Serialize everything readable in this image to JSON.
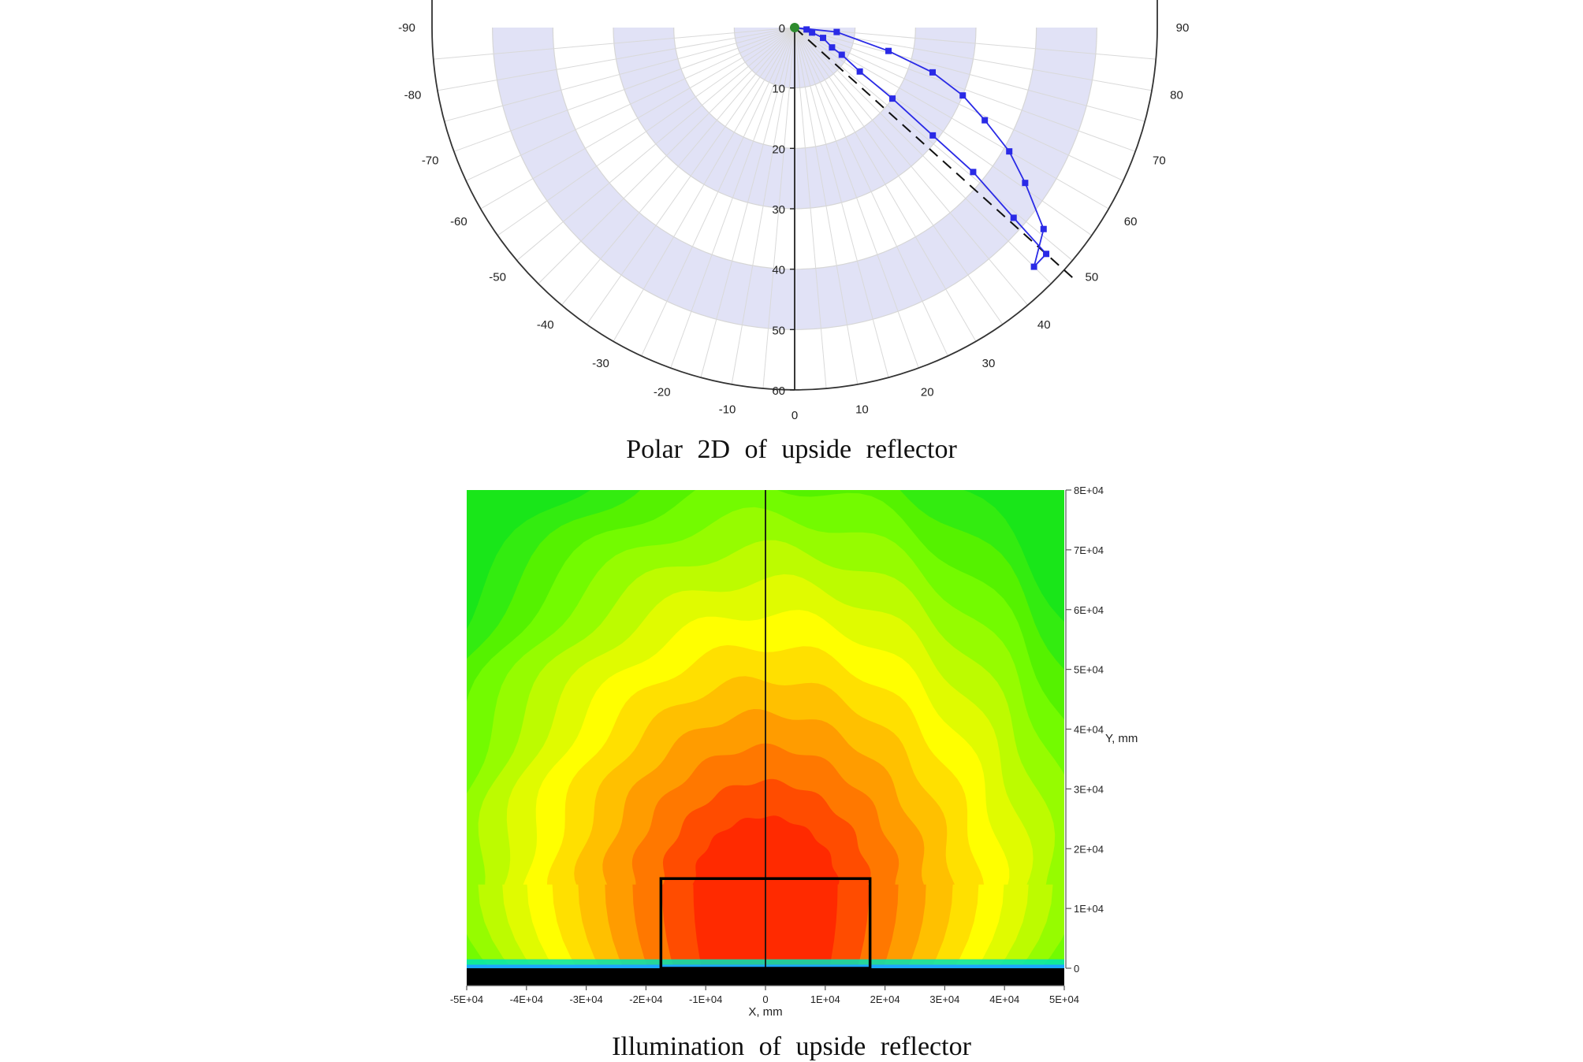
{
  "chart_data": [
    {
      "type": "polar-line",
      "caption": "Polar 2D of upside reflector",
      "radial_range": [
        0,
        60
      ],
      "radial_ticks": [
        "0",
        "10",
        "20",
        "30",
        "40",
        "50",
        "60"
      ],
      "angle_labels_left": [
        "-90",
        "-80",
        "-70",
        "-60",
        "-50",
        "-40",
        "-30",
        "-20",
        "-10",
        "0"
      ],
      "angle_labels_right": [
        "10",
        "20",
        "30",
        "40",
        "50",
        "60",
        "70",
        "80",
        "90"
      ],
      "band_color": "#e1e2f6",
      "series": [
        {
          "color": "#2a2ae6",
          "points": [
            {
              "angle": 90,
              "r": 0
            },
            {
              "angle": 84,
              "r": 7
            },
            {
              "angle": 76,
              "r": 16
            },
            {
              "angle": 72,
              "r": 24
            },
            {
              "angle": 68,
              "r": 30
            },
            {
              "angle": 64,
              "r": 35
            },
            {
              "angle": 60,
              "r": 41
            },
            {
              "angle": 56,
              "r": 46
            },
            {
              "angle": 51,
              "r": 53
            },
            {
              "angle": 45,
              "r": 56
            },
            {
              "angle": 48,
              "r": 56
            },
            {
              "angle": 49,
              "r": 48
            },
            {
              "angle": 51,
              "r": 38
            },
            {
              "angle": 52,
              "r": 29
            },
            {
              "angle": 54,
              "r": 20
            },
            {
              "angle": 56,
              "r": 13
            },
            {
              "angle": 60,
              "r": 9
            },
            {
              "angle": 62,
              "r": 7
            },
            {
              "angle": 70,
              "r": 5
            },
            {
              "angle": 74,
              "r": 3
            },
            {
              "angle": 81,
              "r": 2
            },
            {
              "angle": 90,
              "r": 0
            }
          ]
        }
      ],
      "peak_angle": 48,
      "origin_color": "#2e8b2e"
    },
    {
      "type": "heatmap",
      "caption": "Illumination of upside reflector",
      "xlabel": "X, mm",
      "ylabel": "Y, mm",
      "xlim": [
        -50000,
        50000
      ],
      "ylim": [
        0,
        80000
      ],
      "x_ticks": [
        "-5E+04",
        "-4E+04",
        "-3E+04",
        "-2E+04",
        "-1E+04",
        "0",
        "1E+04",
        "2E+04",
        "3E+04",
        "4E+04",
        "5E+04"
      ],
      "y_ticks": [
        "0",
        "1E+04",
        "2E+04",
        "3E+04",
        "4E+04",
        "5E+04",
        "6E+04",
        "7E+04",
        "8E+04"
      ],
      "colormap": [
        "#19e619",
        "#33ec10",
        "#55f200",
        "#73fb00",
        "#96fc00",
        "#bdfb00",
        "#e0fb00",
        "#ffff00",
        "#ffe000",
        "#ffc000",
        "#ff9c00",
        "#ff7800",
        "#ff4c00",
        "#ff2a00"
      ],
      "highlight_box": {
        "x": [
          -17500,
          17500
        ],
        "y": [
          0,
          15000
        ]
      }
    }
  ]
}
